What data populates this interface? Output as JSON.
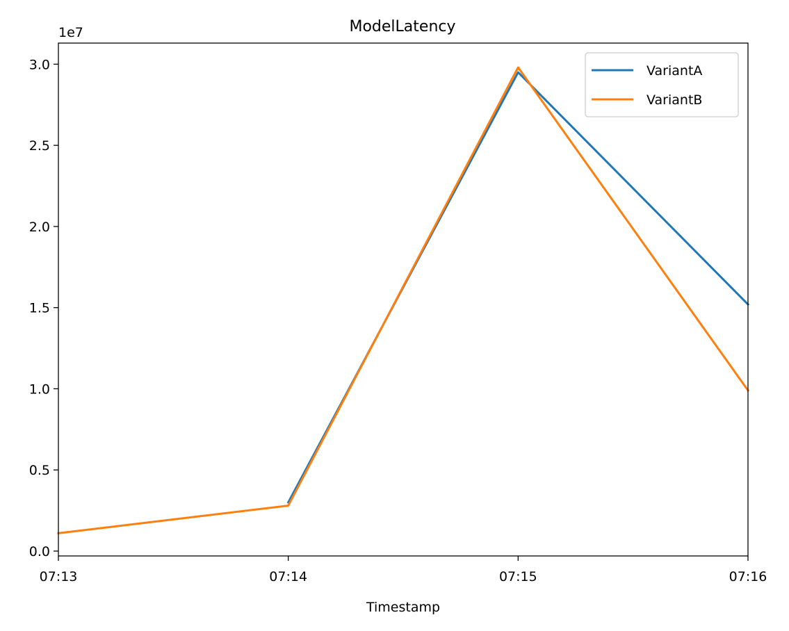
{
  "chart_data": {
    "type": "line",
    "title": "ModelLatency",
    "xlabel": "Timestamp",
    "ylabel": "",
    "y_offset_label": "1e7",
    "x_tick_labels": [
      "07:13",
      "07:14",
      "07:15",
      "07:16"
    ],
    "x": [
      "07:13",
      "07:14",
      "07:15",
      "07:16"
    ],
    "xlim": [
      "07:13",
      "07:16"
    ],
    "ylim": [
      -0.03,
      3.13
    ],
    "y_ticks": [
      0.0,
      0.5,
      1.0,
      1.5,
      2.0,
      2.5,
      3.0
    ],
    "y_tick_labels": [
      "0.0",
      "0.5",
      "1.0",
      "1.5",
      "2.0",
      "2.5",
      "3.0"
    ],
    "y_scale_factor": 10000000,
    "grid": false,
    "legend_position": "top-right",
    "series": [
      {
        "name": "VariantA",
        "color": "#1f77b4",
        "values": [
          null,
          0.3,
          2.95,
          1.52
        ]
      },
      {
        "name": "VariantB",
        "color": "#ff7f0e",
        "values": [
          0.11,
          0.28,
          2.98,
          0.99
        ]
      }
    ]
  }
}
